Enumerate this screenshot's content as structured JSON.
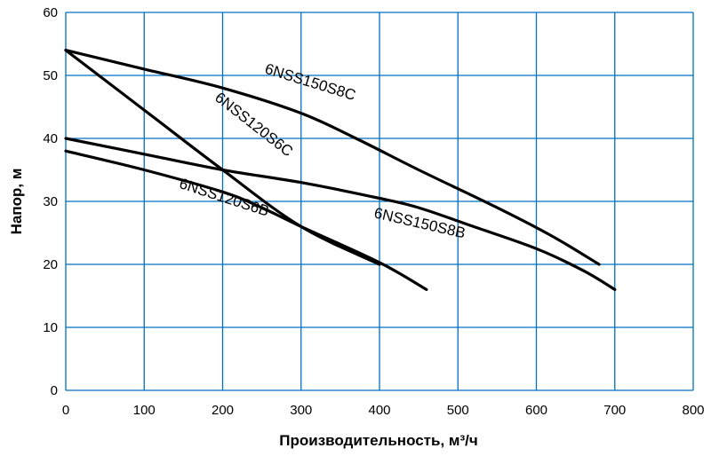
{
  "chart_data": {
    "type": "line",
    "xlabel": "Производительность, м³/ч",
    "ylabel": "Напор, м",
    "xlim": [
      0,
      800
    ],
    "ylim": [
      0,
      60
    ],
    "x_ticks": [
      "0",
      "100",
      "200",
      "300",
      "400",
      "500",
      "600",
      "700",
      "800"
    ],
    "y_ticks": [
      "0",
      "10",
      "20",
      "30",
      "40",
      "50",
      "60"
    ],
    "grid": true,
    "legend": "none (labels placed on lines)",
    "colors": {
      "grid": "#0070c0",
      "line": "#000000"
    },
    "series": [
      {
        "name": "6NSS150S8C",
        "x": [
          0,
          100,
          200,
          300,
          370,
          450,
          550,
          620,
          680
        ],
        "y": [
          54,
          51,
          48,
          44,
          40,
          35,
          29,
          24.5,
          20
        ]
      },
      {
        "name": "6NSS120S6C",
        "x": [
          0,
          100,
          200,
          300,
          400
        ],
        "y": [
          54,
          44.5,
          35,
          26,
          20
        ]
      },
      {
        "name": "6NSS150S8B",
        "x": [
          0,
          100,
          200,
          300,
          400,
          450,
          520,
          600,
          660,
          700
        ],
        "y": [
          40,
          37.5,
          35,
          33,
          30.5,
          29,
          26,
          22.5,
          19,
          16
        ]
      },
      {
        "name": "6NSS120S6B",
        "x": [
          0,
          100,
          200,
          250,
          300,
          400,
          460
        ],
        "y": [
          38,
          35,
          31.5,
          29,
          26,
          20.3,
          16
        ]
      }
    ]
  }
}
